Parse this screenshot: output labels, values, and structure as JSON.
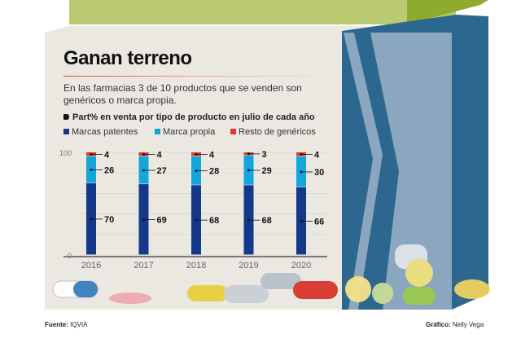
{
  "title": "Ganan terreno",
  "subtitle": "En las farmacias 3 de 10 productos que se venden son genéricos o marca propia.",
  "footer": {
    "source_label": "Fuente:",
    "source": "IQVIA",
    "credit_label": "Gráfico:",
    "credit": "Nelly Vega"
  },
  "chart_data": {
    "type": "bar",
    "stacked": true,
    "title": "Part% en venta por tipo de producto en julio de cada año",
    "categories": [
      "2016",
      "2017",
      "2018",
      "2019",
      "2020"
    ],
    "series": [
      {
        "name": "Marcas patentes",
        "color": "#14398a",
        "values": [
          70,
          69,
          68,
          68,
          66
        ]
      },
      {
        "name": "Marca propia",
        "color": "#12a6dc",
        "values": [
          26,
          27,
          28,
          29,
          30
        ]
      },
      {
        "name": "Resto de genéricos",
        "color": "#d93a32",
        "values": [
          4,
          4,
          4,
          3,
          4
        ]
      }
    ],
    "ylim": [
      0,
      100
    ],
    "yticks": [
      "0",
      "100"
    ],
    "grid": true,
    "legend": "top-left"
  }
}
